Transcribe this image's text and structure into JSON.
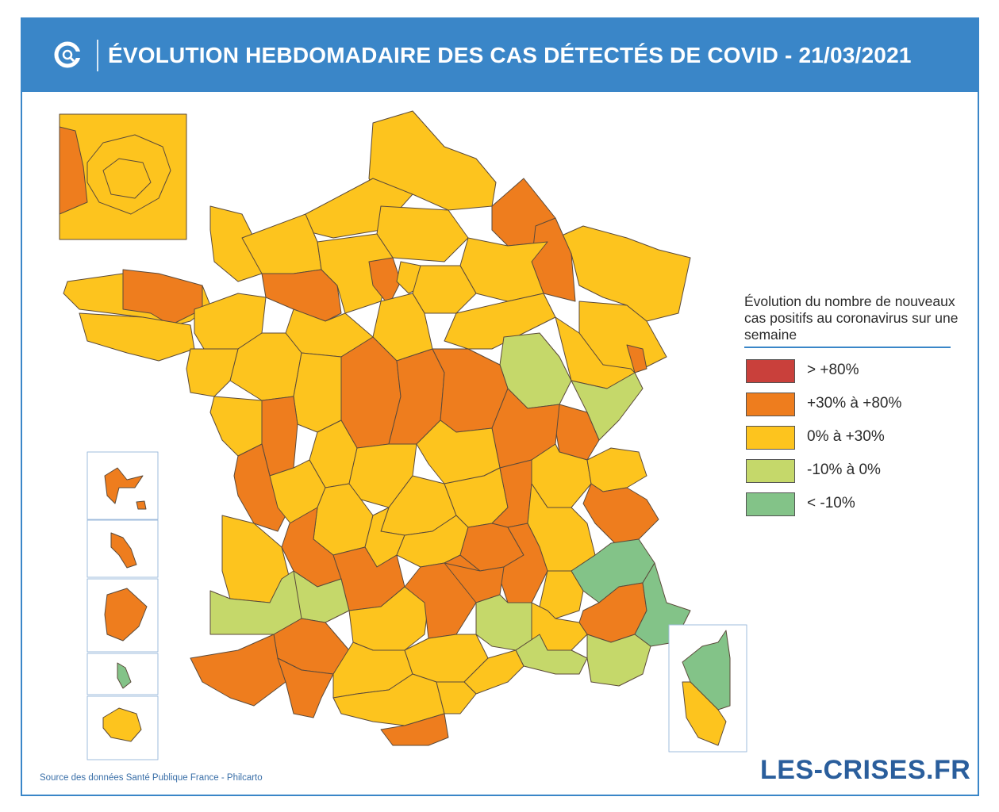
{
  "header": {
    "title": "ÉVOLUTION HEBDOMADAIRE DES CAS DÉTECTÉS DE COVID - 21/03/2021",
    "logo_icon": "les-crises-c-logo-icon"
  },
  "legend": {
    "title": "Évolution du nombre de nouveaux cas positifs au coronavirus sur une semaine",
    "items": [
      {
        "label": "> +80%",
        "color": "#c9403b"
      },
      {
        "label": "+30% à +80%",
        "color": "#ee7d1e"
      },
      {
        "label": "0% à +30%",
        "color": "#fdc41e"
      },
      {
        "label": "-10% à 0%",
        "color": "#c5d86a"
      },
      {
        "label": "< -10%",
        "color": "#83c388"
      }
    ]
  },
  "footer": {
    "source": "Source des données Santé Publique France - Philcarto",
    "brand": "LES-CRISES.FR"
  },
  "colors": {
    "accent": "#3a86c8",
    "brand": "#2a5e9c",
    "border_line": "#5b4a3a"
  }
}
